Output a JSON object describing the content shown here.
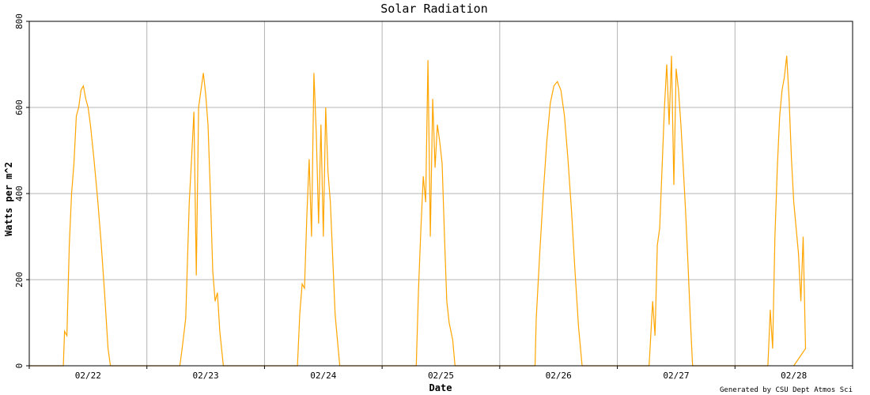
{
  "chart_data": {
    "type": "line",
    "title": "Solar Radiation",
    "xlabel": "Date",
    "ylabel": "Watts per m^2",
    "ylim": [
      0,
      800
    ],
    "yticks": [
      0,
      200,
      400,
      600,
      800
    ],
    "x_domain": [
      "02/22",
      "02/29"
    ],
    "xticks": [
      "02/22",
      "02/23",
      "02/24",
      "02/25",
      "02/26",
      "02/27",
      "02/28"
    ],
    "grid": true,
    "line_color": "#ffa500",
    "series": [
      {
        "name": "",
        "values_note": "",
        "days": [
          {
            "date": "02/22",
            "points": [
              [
                0.29,
                0
              ],
              [
                0.3,
                80
              ],
              [
                0.32,
                70
              ],
              [
                0.34,
                280
              ],
              [
                0.36,
                400
              ],
              [
                0.38,
                470
              ],
              [
                0.4,
                580
              ],
              [
                0.42,
                600
              ],
              [
                0.44,
                640
              ],
              [
                0.46,
                650
              ],
              [
                0.48,
                620
              ],
              [
                0.5,
                600
              ],
              [
                0.52,
                560
              ],
              [
                0.55,
                480
              ],
              [
                0.58,
                390
              ],
              [
                0.61,
                290
              ],
              [
                0.64,
                170
              ],
              [
                0.67,
                40
              ],
              [
                0.69,
                0
              ]
            ]
          },
          {
            "date": "02/23",
            "points": [
              [
                0.28,
                0
              ],
              [
                0.3,
                40
              ],
              [
                0.33,
                110
              ],
              [
                0.36,
                380
              ],
              [
                0.38,
                480
              ],
              [
                0.4,
                590
              ],
              [
                0.42,
                210
              ],
              [
                0.44,
                600
              ],
              [
                0.46,
                640
              ],
              [
                0.48,
                680
              ],
              [
                0.5,
                630
              ],
              [
                0.52,
                560
              ],
              [
                0.54,
                400
              ],
              [
                0.56,
                220
              ],
              [
                0.58,
                150
              ],
              [
                0.6,
                170
              ],
              [
                0.62,
                80
              ],
              [
                0.65,
                0
              ]
            ]
          },
          {
            "date": "02/24",
            "points": [
              [
                0.28,
                0
              ],
              [
                0.3,
                120
              ],
              [
                0.32,
                190
              ],
              [
                0.34,
                180
              ],
              [
                0.36,
                350
              ],
              [
                0.38,
                480
              ],
              [
                0.4,
                300
              ],
              [
                0.42,
                680
              ],
              [
                0.44,
                540
              ],
              [
                0.46,
                330
              ],
              [
                0.48,
                560
              ],
              [
                0.5,
                300
              ],
              [
                0.52,
                600
              ],
              [
                0.54,
                450
              ],
              [
                0.56,
                380
              ],
              [
                0.58,
                250
              ],
              [
                0.6,
                120
              ],
              [
                0.62,
                60
              ],
              [
                0.64,
                0
              ]
            ]
          },
          {
            "date": "02/25",
            "points": [
              [
                0.29,
                0
              ],
              [
                0.31,
                180
              ],
              [
                0.33,
                320
              ],
              [
                0.35,
                440
              ],
              [
                0.37,
                380
              ],
              [
                0.39,
                710
              ],
              [
                0.41,
                300
              ],
              [
                0.43,
                620
              ],
              [
                0.45,
                460
              ],
              [
                0.47,
                560
              ],
              [
                0.49,
                520
              ],
              [
                0.51,
                470
              ],
              [
                0.53,
                300
              ],
              [
                0.55,
                150
              ],
              [
                0.57,
                100
              ],
              [
                0.6,
                60
              ],
              [
                0.62,
                0
              ]
            ]
          },
          {
            "date": "02/26",
            "points": [
              [
                0.3,
                0
              ],
              [
                0.31,
                110
              ],
              [
                0.34,
                260
              ],
              [
                0.37,
                400
              ],
              [
                0.4,
                520
              ],
              [
                0.43,
                610
              ],
              [
                0.46,
                650
              ],
              [
                0.49,
                660
              ],
              [
                0.52,
                640
              ],
              [
                0.55,
                580
              ],
              [
                0.58,
                480
              ],
              [
                0.61,
                360
              ],
              [
                0.64,
                220
              ],
              [
                0.67,
                90
              ],
              [
                0.7,
                0
              ]
            ]
          },
          {
            "date": "02/27",
            "points": [
              [
                0.27,
                0
              ],
              [
                0.3,
                150
              ],
              [
                0.32,
                70
              ],
              [
                0.34,
                280
              ],
              [
                0.36,
                320
              ],
              [
                0.38,
                460
              ],
              [
                0.4,
                600
              ],
              [
                0.42,
                700
              ],
              [
                0.44,
                560
              ],
              [
                0.46,
                720
              ],
              [
                0.48,
                420
              ],
              [
                0.5,
                690
              ],
              [
                0.52,
                640
              ],
              [
                0.54,
                560
              ],
              [
                0.56,
                460
              ],
              [
                0.58,
                360
              ],
              [
                0.6,
                240
              ],
              [
                0.62,
                110
              ],
              [
                0.64,
                0
              ]
            ]
          },
          {
            "date": "02/28",
            "points": [
              [
                0.28,
                0
              ],
              [
                0.3,
                130
              ],
              [
                0.32,
                40
              ],
              [
                0.34,
                300
              ],
              [
                0.36,
                460
              ],
              [
                0.38,
                580
              ],
              [
                0.4,
                640
              ],
              [
                0.42,
                670
              ],
              [
                0.44,
                720
              ],
              [
                0.46,
                620
              ],
              [
                0.48,
                480
              ],
              [
                0.5,
                380
              ],
              [
                0.52,
                320
              ],
              [
                0.54,
                260
              ],
              [
                0.56,
                150
              ],
              [
                0.58,
                300
              ],
              [
                0.6,
                40
              ]
            ]
          }
        ]
      }
    ]
  },
  "footer": "Generated by CSU Dept Atmos Sci"
}
